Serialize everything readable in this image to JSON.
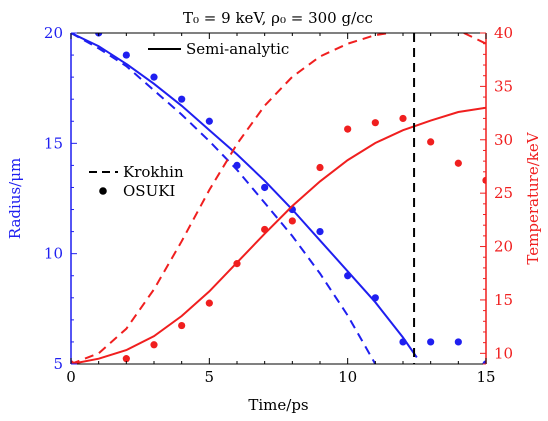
{
  "chart_data": {
    "type": "line",
    "title": "T₀ = 9 keV, ρ₀ = 300 g/cc",
    "xlabel": "Time/ps",
    "ylabel_left": "Radius/μm",
    "ylabel_right": "Temperature/keV",
    "xlim": [
      0,
      15
    ],
    "ylim_left": [
      5,
      20
    ],
    "ylim_right": [
      9,
      40
    ],
    "x_ticks": [
      0,
      5,
      10,
      15
    ],
    "y_left_ticks": [
      5,
      10,
      15,
      20
    ],
    "y_right_ticks": [
      10,
      15,
      20,
      25,
      30,
      35,
      40
    ],
    "grid": false,
    "legend": {
      "placement": "inside-left",
      "entries": [
        {
          "label": "Semi-analytic",
          "style": "solid"
        },
        {
          "label": "Krokhin",
          "style": "dashed"
        },
        {
          "label": "OSUKI",
          "style": "dots"
        }
      ]
    },
    "vertical_line": {
      "x": 12.4,
      "style": "dashed",
      "color": "#000000"
    },
    "colors": {
      "radius": "#1f1ff0",
      "temperature": "#f01f1f",
      "reference": "#000000"
    },
    "series": [
      {
        "name": "Semi-analytic",
        "axis": "left",
        "style": "solid",
        "color": "#1f1ff0",
        "x": [
          0,
          1,
          2,
          3,
          4,
          5,
          6,
          7,
          8,
          9,
          10,
          11,
          12,
          12.5
        ],
        "values": [
          20,
          19.4,
          18.6,
          17.7,
          16.7,
          15.6,
          14.5,
          13.3,
          12.0,
          10.6,
          9.2,
          7.8,
          6.2,
          5.3
        ]
      },
      {
        "name": "Krokhin",
        "axis": "left",
        "style": "dashed",
        "color": "#1f1ff0",
        "x": [
          0,
          1,
          2,
          3,
          4,
          5,
          6,
          7,
          8,
          9,
          10,
          11
        ],
        "values": [
          20,
          19.3,
          18.5,
          17.4,
          16.3,
          15.1,
          13.8,
          12.3,
          10.8,
          9.1,
          7.2,
          5.0
        ]
      },
      {
        "name": "OSUKI",
        "axis": "left",
        "style": "dots",
        "color": "#1f1ff0",
        "x": [
          1,
          2,
          3,
          4,
          5,
          6,
          7,
          8,
          9,
          10,
          11,
          12,
          13,
          14
        ],
        "values": [
          20,
          19,
          18,
          17,
          16,
          14,
          13,
          12,
          11,
          9,
          8,
          6,
          6,
          6
        ]
      },
      {
        "name": "Semi-analytic",
        "axis": "right",
        "style": "solid",
        "color": "#f01f1f",
        "x": [
          0,
          1,
          2,
          3,
          4,
          5,
          6,
          7,
          8,
          9,
          10,
          11,
          12,
          13,
          14,
          15
        ],
        "values": [
          9,
          9.5,
          10.3,
          11.6,
          13.5,
          15.8,
          18.5,
          21.2,
          23.8,
          26.1,
          28.1,
          29.7,
          30.9,
          31.8,
          32.6,
          33.0
        ]
      },
      {
        "name": "Krokhin",
        "axis": "right",
        "style": "dashed",
        "color": "#f01f1f",
        "x": [
          0,
          1,
          2,
          3,
          4,
          5,
          6,
          7,
          8,
          9,
          10,
          11,
          11.5
        ],
        "values": [
          9,
          10,
          12.3,
          16.0,
          20.5,
          25.3,
          29.6,
          33.2,
          35.9,
          37.8,
          39.0,
          39.8,
          40.0
        ]
      },
      {
        "name": "OSUKI",
        "axis": "right",
        "style": "dots",
        "color": "#f01f1f",
        "x": [
          0,
          2,
          3,
          4,
          5,
          6,
          7,
          8,
          9,
          10,
          11,
          12,
          13,
          14,
          15
        ],
        "values": [
          9,
          9.5,
          10.8,
          12.6,
          14.7,
          18.4,
          21.6,
          22.4,
          27.4,
          31.0,
          31.6,
          32.0,
          29.8,
          27.8,
          26.2
        ]
      }
    ],
    "partial_right_edge": {
      "krokhin_temperature_x": [
        14.2,
        14.6,
        15
      ],
      "krokhin_temperature_values": [
        40,
        39.5,
        39.0
      ],
      "osuki_radius_x": [
        15
      ],
      "osuki_radius_values": [
        5
      ]
    }
  }
}
